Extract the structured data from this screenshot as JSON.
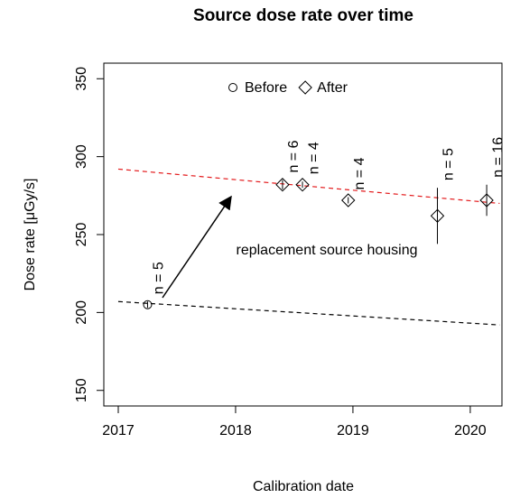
{
  "chart_data": {
    "type": "scatter",
    "title": "Source dose rate over time",
    "x_label": "Calibration date",
    "y_label": "Dose rate [μGy/s]",
    "xlim": [
      2016.877,
      2020.27
    ],
    "xticks": [
      2017,
      2018,
      2019,
      2020
    ],
    "ylim": [
      140,
      360
    ],
    "yticks": [
      150,
      200,
      250,
      300,
      350
    ],
    "series": [
      {
        "name": "Before",
        "marker": "circle",
        "color": "#000000",
        "x": [
          2017.25
        ],
        "values": [
          205
        ],
        "errors": [
          2
        ],
        "value_labels": [
          "n = 5"
        ]
      },
      {
        "name": "After",
        "marker": "diamond",
        "color": "#000000",
        "x": [
          2018.4,
          2018.57,
          2018.96,
          2019.72,
          2020.14
        ],
        "values": [
          282,
          282,
          272,
          262,
          272
        ],
        "errors": [
          3,
          2,
          2,
          18,
          10
        ],
        "value_labels": [
          "n = 6",
          "n = 4",
          "n = 4",
          "n = 5",
          "n = 16"
        ]
      }
    ],
    "trend_lines": [
      {
        "color": "#000000",
        "x": [
          2017,
          2020.25
        ],
        "values": [
          207,
          192
        ]
      },
      {
        "color": "#e31a1c",
        "x": [
          2017,
          2020.25
        ],
        "values": [
          292,
          270
        ]
      }
    ],
    "annotation": "replacement source housing"
  }
}
